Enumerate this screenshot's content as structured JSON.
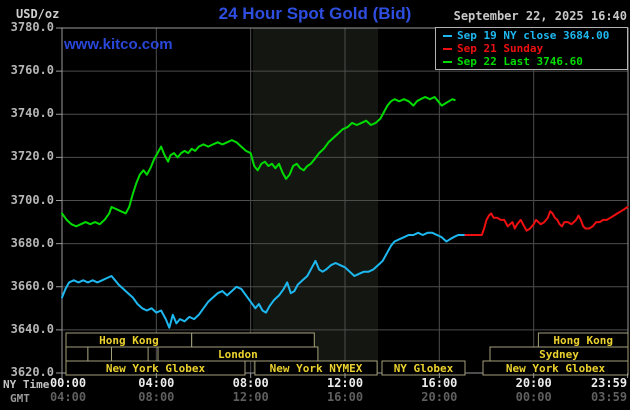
{
  "header": {
    "unit_label": "USD/oz",
    "title": "24 Hour Spot Gold (Bid)",
    "date_line": "September 22, 2025 16:40",
    "watermark": "www.kitco.com"
  },
  "colors": {
    "title_blue": "#2e4ee0",
    "watermark_blue": "#2947d8",
    "green": "#00dc00",
    "cyan": "#1eb8f0",
    "red": "#ee1010",
    "grid": "#4d4d4d",
    "frame": "#9a9a9a",
    "band": "#141711",
    "session_border": "#a3a17a",
    "session_text": "#ecd22e"
  },
  "legend": {
    "items": [
      {
        "label": "Sep 19 NY close 3684.00",
        "color": "#1eb8f0"
      },
      {
        "label": "Sep 21 Sunday",
        "color": "#ee1010"
      },
      {
        "label": "Sep 22 Last 3746.60",
        "color": "#00dc00"
      }
    ]
  },
  "axes": {
    "y_ticks": [
      "3780.0",
      "3760.0",
      "3740.0",
      "3720.0",
      "3700.0",
      "3680.0",
      "3660.0",
      "3640.0",
      "3620.0"
    ],
    "x_row1_label": "NY Time",
    "x_row2_label": "GMT",
    "x_row1_ticks": [
      "00:00",
      "04:00",
      "08:00",
      "12:00",
      "16:00",
      "20:00",
      "23:59"
    ],
    "x_row2_ticks": [
      "04:00",
      "08:00",
      "12:00",
      "16:00",
      "20:00",
      "00:00",
      "03:59"
    ]
  },
  "sessions": {
    "rows": [
      {
        "boxes": [
          {
            "label": "Hong Kong",
            "start": 0.17,
            "end": 5.5
          },
          {
            "label": "",
            "start": 5.5,
            "end": 10.7
          },
          {
            "label": "Hong Kong",
            "start": 20.2,
            "end": 24.0
          }
        ]
      },
      {
        "boxes": [
          {
            "label": "",
            "start": 0.17,
            "end": 1.1
          },
          {
            "label": "",
            "start": 1.1,
            "end": 2.1
          },
          {
            "label": "",
            "start": 2.1,
            "end": 3.65
          },
          {
            "label": "London",
            "start": 4.07,
            "end": 10.85
          },
          {
            "label": "Sydney",
            "start": 18.15,
            "end": 24.0
          }
        ]
      },
      {
        "boxes": [
          {
            "label": "New York Globex",
            "start": 0.17,
            "end": 7.76
          },
          {
            "label": "New York NYMEX",
            "start": 8.18,
            "end": 13.36
          },
          {
            "label": "NY Globex",
            "start": 13.57,
            "end": 17.09
          },
          {
            "label": "New York Globex",
            "start": 17.85,
            "end": 24.0
          }
        ]
      }
    ]
  },
  "chart_data": {
    "type": "line",
    "title": "24 Hour Spot Gold (Bid)",
    "ylabel": "USD/oz",
    "ylim": [
      3620,
      3780
    ],
    "y_step": 20,
    "x_hours_ny": [
      0,
      24
    ],
    "grid": true,
    "highlight_band_hours": [
      8.1,
      13.4
    ],
    "legend_position": "top-right",
    "series": [
      {
        "name": "Sep 19 NY close",
        "close": 3684.0,
        "color": "#1eb8f0",
        "points": [
          [
            0,
            3655
          ],
          [
            0.15,
            3659
          ],
          [
            0.3,
            3662
          ],
          [
            0.5,
            3663
          ],
          [
            0.7,
            3662
          ],
          [
            0.9,
            3663
          ],
          [
            1.1,
            3662
          ],
          [
            1.3,
            3663
          ],
          [
            1.5,
            3662
          ],
          [
            1.7,
            3663
          ],
          [
            1.9,
            3664
          ],
          [
            2.1,
            3665
          ],
          [
            2.25,
            3663
          ],
          [
            2.4,
            3661
          ],
          [
            2.6,
            3659
          ],
          [
            2.8,
            3657
          ],
          [
            3.0,
            3655
          ],
          [
            3.2,
            3652
          ],
          [
            3.4,
            3650
          ],
          [
            3.6,
            3649
          ],
          [
            3.8,
            3650
          ],
          [
            4.0,
            3648
          ],
          [
            4.2,
            3649
          ],
          [
            4.4,
            3645
          ],
          [
            4.55,
            3641
          ],
          [
            4.7,
            3647
          ],
          [
            4.85,
            3643
          ],
          [
            5.0,
            3645
          ],
          [
            5.2,
            3644
          ],
          [
            5.4,
            3646
          ],
          [
            5.6,
            3645
          ],
          [
            5.8,
            3647
          ],
          [
            6.0,
            3650
          ],
          [
            6.2,
            3653
          ],
          [
            6.4,
            3655
          ],
          [
            6.6,
            3657
          ],
          [
            6.8,
            3658
          ],
          [
            7.0,
            3656
          ],
          [
            7.2,
            3658
          ],
          [
            7.4,
            3660
          ],
          [
            7.6,
            3659
          ],
          [
            7.8,
            3656
          ],
          [
            8.0,
            3653
          ],
          [
            8.2,
            3650
          ],
          [
            8.35,
            3652
          ],
          [
            8.5,
            3649
          ],
          [
            8.65,
            3648
          ],
          [
            8.8,
            3651
          ],
          [
            9.0,
            3654
          ],
          [
            9.2,
            3656
          ],
          [
            9.4,
            3659
          ],
          [
            9.55,
            3662
          ],
          [
            9.7,
            3657
          ],
          [
            9.85,
            3658
          ],
          [
            10.0,
            3661
          ],
          [
            10.2,
            3663
          ],
          [
            10.4,
            3665
          ],
          [
            10.6,
            3669
          ],
          [
            10.75,
            3672
          ],
          [
            10.9,
            3668
          ],
          [
            11.05,
            3667
          ],
          [
            11.2,
            3668
          ],
          [
            11.4,
            3670
          ],
          [
            11.6,
            3671
          ],
          [
            11.8,
            3670
          ],
          [
            12.0,
            3669
          ],
          [
            12.2,
            3667
          ],
          [
            12.4,
            3665
          ],
          [
            12.6,
            3666
          ],
          [
            12.8,
            3667
          ],
          [
            13.0,
            3667
          ],
          [
            13.2,
            3668
          ],
          [
            13.4,
            3670
          ],
          [
            13.6,
            3672
          ],
          [
            13.8,
            3676
          ],
          [
            13.95,
            3679
          ],
          [
            14.1,
            3681
          ],
          [
            14.3,
            3682
          ],
          [
            14.5,
            3683
          ],
          [
            14.7,
            3684
          ],
          [
            14.9,
            3684
          ],
          [
            15.1,
            3685
          ],
          [
            15.3,
            3684
          ],
          [
            15.5,
            3685
          ],
          [
            15.7,
            3685
          ],
          [
            15.9,
            3684
          ],
          [
            16.1,
            3683
          ],
          [
            16.3,
            3681
          ],
          [
            16.45,
            3682
          ],
          [
            16.6,
            3683
          ],
          [
            16.8,
            3684
          ],
          [
            17.1,
            3684
          ]
        ]
      },
      {
        "name": "Sep 21 Sunday",
        "color": "#ee1010",
        "points": [
          [
            17.1,
            3684
          ],
          [
            17.8,
            3684
          ],
          [
            17.9,
            3687
          ],
          [
            18.0,
            3691
          ],
          [
            18.1,
            3693
          ],
          [
            18.2,
            3694
          ],
          [
            18.3,
            3692
          ],
          [
            18.45,
            3692
          ],
          [
            18.6,
            3691
          ],
          [
            18.75,
            3691
          ],
          [
            18.9,
            3688
          ],
          [
            19.0,
            3689
          ],
          [
            19.1,
            3690
          ],
          [
            19.2,
            3687
          ],
          [
            19.3,
            3689
          ],
          [
            19.45,
            3691
          ],
          [
            19.6,
            3688
          ],
          [
            19.7,
            3686
          ],
          [
            19.85,
            3687
          ],
          [
            20.0,
            3689
          ],
          [
            20.1,
            3691
          ],
          [
            20.2,
            3690
          ],
          [
            20.3,
            3689
          ],
          [
            20.45,
            3690
          ],
          [
            20.6,
            3692
          ],
          [
            20.7,
            3695
          ],
          [
            20.8,
            3694
          ],
          [
            20.9,
            3692
          ],
          [
            21.0,
            3691
          ],
          [
            21.1,
            3689
          ],
          [
            21.2,
            3688
          ],
          [
            21.3,
            3690
          ],
          [
            21.45,
            3690
          ],
          [
            21.6,
            3689
          ],
          [
            21.7,
            3690
          ],
          [
            21.8,
            3691
          ],
          [
            21.9,
            3693
          ],
          [
            22.0,
            3691
          ],
          [
            22.1,
            3688
          ],
          [
            22.2,
            3687
          ],
          [
            22.35,
            3687
          ],
          [
            22.5,
            3688
          ],
          [
            22.65,
            3690
          ],
          [
            22.8,
            3690
          ],
          [
            22.95,
            3691
          ],
          [
            23.1,
            3691
          ],
          [
            23.25,
            3692
          ],
          [
            23.4,
            3693
          ],
          [
            23.55,
            3694
          ],
          [
            23.7,
            3695
          ],
          [
            23.85,
            3696
          ],
          [
            23.98,
            3697
          ]
        ]
      },
      {
        "name": "Sep 22 Last",
        "last": 3746.6,
        "color": "#00dc00",
        "points": [
          [
            0,
            3694
          ],
          [
            0.2,
            3691
          ],
          [
            0.4,
            3689
          ],
          [
            0.6,
            3688
          ],
          [
            0.8,
            3689
          ],
          [
            1.0,
            3690
          ],
          [
            1.2,
            3689
          ],
          [
            1.4,
            3690
          ],
          [
            1.6,
            3689
          ],
          [
            1.8,
            3691
          ],
          [
            2.0,
            3694
          ],
          [
            2.1,
            3697
          ],
          [
            2.3,
            3696
          ],
          [
            2.5,
            3695
          ],
          [
            2.7,
            3694
          ],
          [
            2.85,
            3697
          ],
          [
            3.0,
            3703
          ],
          [
            3.15,
            3708
          ],
          [
            3.3,
            3712
          ],
          [
            3.45,
            3714
          ],
          [
            3.6,
            3712
          ],
          [
            3.75,
            3715
          ],
          [
            3.9,
            3719
          ],
          [
            4.05,
            3722
          ],
          [
            4.2,
            3725
          ],
          [
            4.35,
            3721
          ],
          [
            4.5,
            3718
          ],
          [
            4.6,
            3721
          ],
          [
            4.75,
            3722
          ],
          [
            4.9,
            3720
          ],
          [
            5.05,
            3722
          ],
          [
            5.2,
            3723
          ],
          [
            5.35,
            3722
          ],
          [
            5.5,
            3724
          ],
          [
            5.65,
            3723
          ],
          [
            5.8,
            3725
          ],
          [
            6.0,
            3726
          ],
          [
            6.2,
            3725
          ],
          [
            6.4,
            3726
          ],
          [
            6.6,
            3727
          ],
          [
            6.8,
            3726
          ],
          [
            7.0,
            3727
          ],
          [
            7.2,
            3728
          ],
          [
            7.4,
            3727
          ],
          [
            7.6,
            3725
          ],
          [
            7.8,
            3723
          ],
          [
            8.0,
            3722
          ],
          [
            8.15,
            3716
          ],
          [
            8.3,
            3714
          ],
          [
            8.45,
            3717
          ],
          [
            8.6,
            3718
          ],
          [
            8.75,
            3716
          ],
          [
            8.9,
            3717
          ],
          [
            9.05,
            3715
          ],
          [
            9.2,
            3717
          ],
          [
            9.35,
            3713
          ],
          [
            9.5,
            3710
          ],
          [
            9.65,
            3712
          ],
          [
            9.8,
            3716
          ],
          [
            9.95,
            3717
          ],
          [
            10.1,
            3715
          ],
          [
            10.25,
            3714
          ],
          [
            10.4,
            3716
          ],
          [
            10.55,
            3717
          ],
          [
            10.7,
            3719
          ],
          [
            10.9,
            3722
          ],
          [
            11.1,
            3724
          ],
          [
            11.3,
            3727
          ],
          [
            11.5,
            3729
          ],
          [
            11.7,
            3731
          ],
          [
            11.9,
            3733
          ],
          [
            12.1,
            3734
          ],
          [
            12.3,
            3736
          ],
          [
            12.5,
            3735
          ],
          [
            12.7,
            3736
          ],
          [
            12.9,
            3737
          ],
          [
            13.1,
            3735
          ],
          [
            13.3,
            3736
          ],
          [
            13.5,
            3738
          ],
          [
            13.65,
            3741
          ],
          [
            13.8,
            3744
          ],
          [
            13.95,
            3746
          ],
          [
            14.1,
            3747
          ],
          [
            14.3,
            3746
          ],
          [
            14.5,
            3747
          ],
          [
            14.7,
            3746
          ],
          [
            14.9,
            3744
          ],
          [
            15.05,
            3746
          ],
          [
            15.2,
            3747
          ],
          [
            15.4,
            3748
          ],
          [
            15.6,
            3747
          ],
          [
            15.8,
            3748
          ],
          [
            15.95,
            3746
          ],
          [
            16.1,
            3744
          ],
          [
            16.25,
            3745
          ],
          [
            16.4,
            3746
          ],
          [
            16.55,
            3747
          ],
          [
            16.65,
            3746.6
          ]
        ]
      }
    ]
  }
}
